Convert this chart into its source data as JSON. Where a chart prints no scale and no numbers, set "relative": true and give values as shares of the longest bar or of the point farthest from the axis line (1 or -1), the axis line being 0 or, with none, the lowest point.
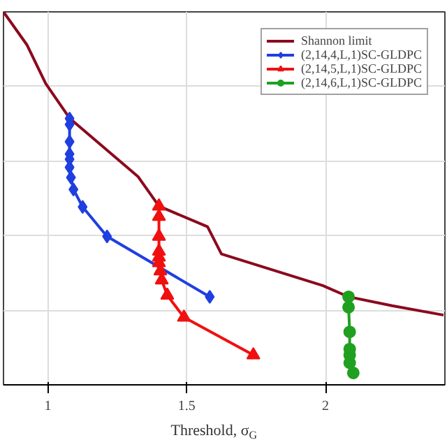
{
  "chart_data": {
    "type": "line",
    "xlabel": "Threshold, σ$_{G}$",
    "relative": true,
    "xlim": [
      0.84,
      2.43
    ],
    "xticks": [
      1,
      1.5,
      2
    ],
    "grid": true,
    "legend": "top right",
    "series": [
      {
        "name": "Shannon limit",
        "color": "#8b0a1e",
        "marker": "none",
        "x": [
          0.84,
          0.925,
          0.992,
          1.078,
          1.325,
          1.4,
          1.575,
          1.625,
          1.99,
          2.083,
          2.24,
          2.425
        ],
        "values": [
          1,
          0.911,
          0.808,
          0.715,
          0.558,
          0.479,
          0.424,
          0.351,
          0.266,
          0.236,
          0.212,
          0.187
        ]
      },
      {
        "name": "(2,14,4,L,1)SC-GLDPC",
        "color": "#1f3fe0",
        "marker": "diamond",
        "x": [
          1.078,
          1.078,
          1.078,
          1.078,
          1.078,
          1.078,
          1.083,
          1.092,
          1.125,
          1.213,
          1.583
        ],
        "values": [
          0.714,
          0.698,
          0.652,
          0.619,
          0.605,
          0.583,
          0.556,
          0.524,
          0.477,
          0.398,
          0.236
        ]
      },
      {
        "name": "(2,14,5,L,1)SC-GLDPC",
        "color": "#f01010",
        "marker": "triangle",
        "x": [
          1.4,
          1.4,
          1.4,
          1.4,
          1.4,
          1.4,
          1.405,
          1.41,
          1.43,
          1.49,
          1.74
        ],
        "values": [
          0.479,
          0.451,
          0.398,
          0.358,
          0.342,
          0.327,
          0.305,
          0.281,
          0.24,
          0.181,
          0.08
        ]
      },
      {
        "name": "(2,14,6,L,1)SC-GLDPC",
        "color": "#20a020",
        "marker": "circle",
        "x": [
          2.083,
          2.083,
          2.087,
          2.087,
          2.087,
          2.087,
          2.1
        ],
        "values": [
          0.236,
          0.208,
          0.142,
          0.096,
          0.08,
          0.059,
          0.032
        ]
      }
    ]
  }
}
